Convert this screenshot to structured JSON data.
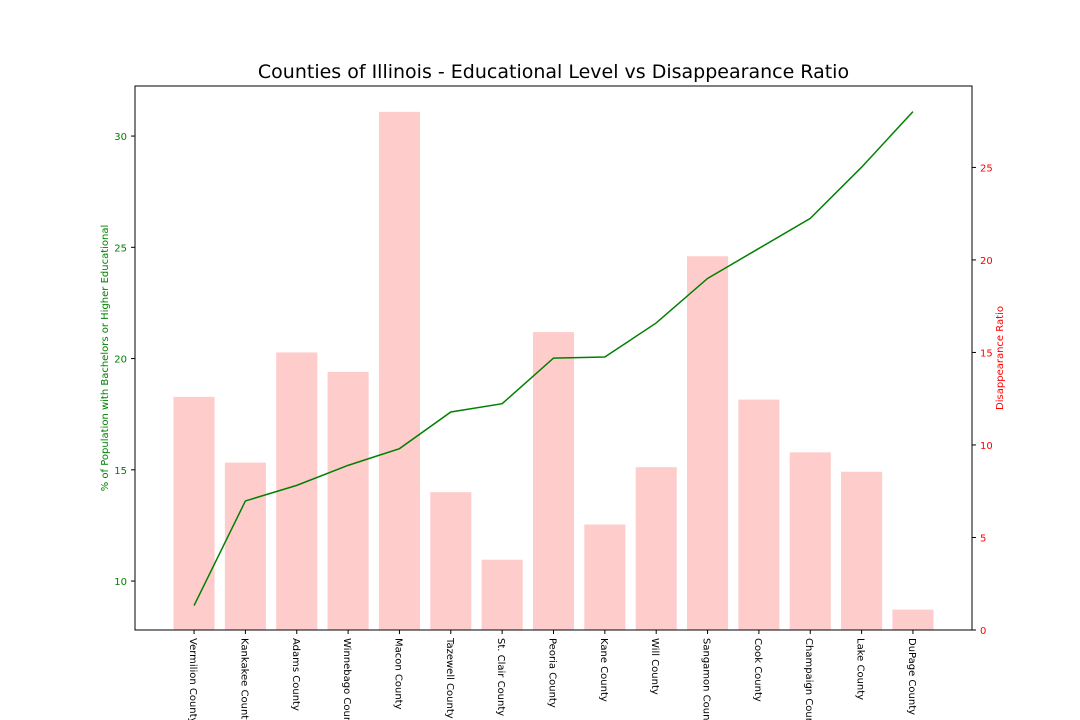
{
  "chart_data": {
    "type": "bar+line",
    "title": "Counties of Illinois - Educational Level vs Disappearance Ratio",
    "xlabel": "",
    "categories": [
      "Vermilion County",
      "Kankakee County",
      "Adams County",
      "Winnebago County",
      "Macon County",
      "Tazewell County",
      "St. Clair County",
      "Peoria County",
      "Kane County",
      "Will County",
      "Sangamon County",
      "Cook County",
      "Champaign County",
      "Lake County",
      "DuPage County"
    ],
    "left_axis": {
      "label": "% of Population with Bachelors or Higher Educational",
      "color": "#008000",
      "ylim": [
        7.8,
        32.25
      ],
      "ticks": [
        10,
        15,
        20,
        25,
        30
      ]
    },
    "right_axis": {
      "label": "Disappearance Ratio",
      "color": "#ff0000",
      "ylim": [
        0,
        29.4
      ],
      "ticks": [
        0,
        5,
        10,
        15,
        20,
        25
      ]
    },
    "series": [
      {
        "name": "",
        "kind": "line",
        "axis": "left",
        "color": "#008000",
        "values": [
          8.9,
          13.6,
          14.3,
          15.2,
          15.95,
          17.6,
          17.97,
          20.02,
          20.07,
          21.6,
          23.6,
          24.95,
          26.3,
          28.6,
          31.1
        ]
      },
      {
        "name": "",
        "kind": "bar",
        "axis": "right",
        "color": "#ffcccc",
        "values": [
          12.6,
          9.05,
          15.0,
          13.95,
          28.0,
          7.45,
          3.8,
          16.1,
          5.7,
          8.8,
          20.2,
          12.45,
          9.6,
          8.55,
          1.1
        ]
      }
    ],
    "grid": false,
    "legend": "none"
  }
}
